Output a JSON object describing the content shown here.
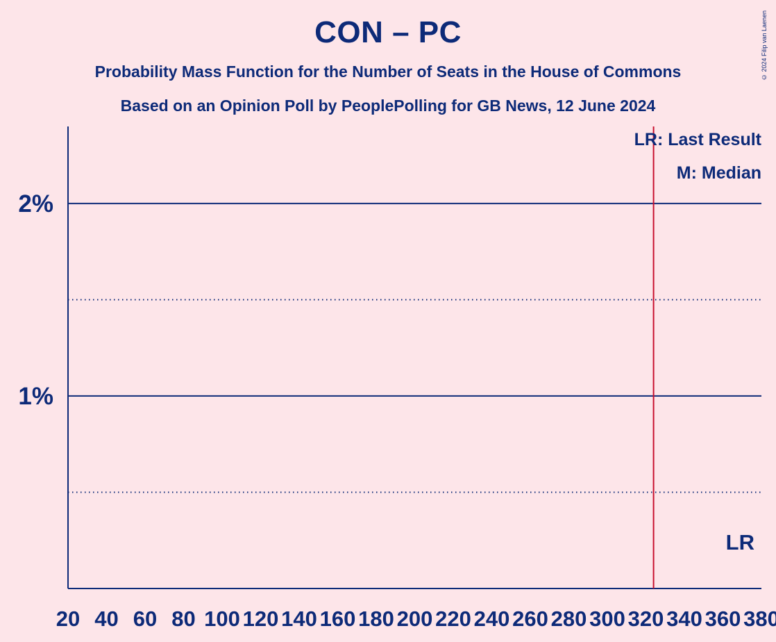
{
  "header": {
    "title": "CON – PC",
    "subtitle1": "Probability Mass Function for the Number of Seats in the House of Commons",
    "subtitle2": "Based on an Opinion Poll by PeoplePolling for GB News, 12 June 2024",
    "copyright": "© 2024 Filip van Laenen"
  },
  "legend": {
    "last_result": "LR: Last Result",
    "median": "M: Median",
    "lr_marker": "LR"
  },
  "colors": {
    "background": "#fde5e9",
    "text": "#0d2a78",
    "last_result_line": "#c8102e"
  },
  "chart_data": {
    "type": "bar",
    "title": "CON – PC",
    "xlabel": "",
    "ylabel": "",
    "xlim": [
      20,
      380
    ],
    "ylim": [
      0,
      2.4
    ],
    "x_ticks": [
      20,
      40,
      60,
      80,
      100,
      120,
      140,
      160,
      180,
      200,
      220,
      240,
      260,
      280,
      300,
      320,
      340,
      360,
      380
    ],
    "y_ticks": [
      {
        "value": 1,
        "label": "1%",
        "style": "solid"
      },
      {
        "value": 2,
        "label": "2%",
        "style": "solid"
      }
    ],
    "y_minor_gridlines": [
      0.5,
      1.5
    ],
    "last_result": 324,
    "legend_position": "top-right",
    "bar_color": "#ffffff"
  }
}
